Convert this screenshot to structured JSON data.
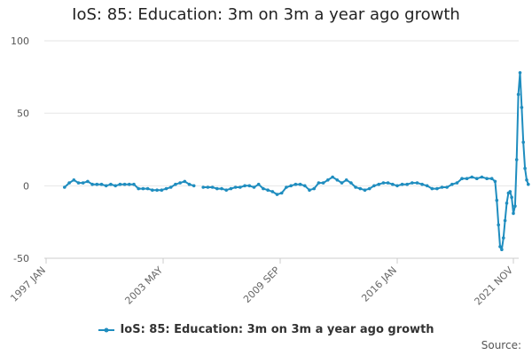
{
  "chart_data": {
    "type": "line",
    "title": "IoS: 85: Education: 3m on 3m a year ago growth",
    "xlabel": "",
    "ylabel": "",
    "ylim": [
      -50,
      100
    ],
    "yticks": [
      -50,
      0,
      50,
      100
    ],
    "xticks": [
      "1997 JAN",
      "2003 MAY",
      "2009 SEP",
      "2016 JAN",
      "2021 NOV"
    ],
    "grid": true,
    "legend_position": "bottom",
    "source_label": "Source:",
    "line_color": "#1f8dbf",
    "series": [
      {
        "name": "IoS: 85: Education: 3m on 3m a year ago growth",
        "points": [
          [
            "1998-01",
            -1
          ],
          [
            "1998-04",
            2
          ],
          [
            "1998-07",
            4
          ],
          [
            "1998-10",
            2
          ],
          [
            "1999-01",
            2
          ],
          [
            "1999-04",
            3
          ],
          [
            "1999-07",
            1
          ],
          [
            "1999-10",
            1
          ],
          [
            "2000-01",
            1
          ],
          [
            "2000-04",
            0
          ],
          [
            "2000-07",
            1
          ],
          [
            "2000-10",
            0
          ],
          [
            "2001-01",
            1
          ],
          [
            "2001-04",
            1
          ],
          [
            "2001-07",
            1
          ],
          [
            "2001-10",
            1
          ],
          [
            "2002-01",
            -2
          ],
          [
            "2002-04",
            -2
          ],
          [
            "2002-07",
            -2
          ],
          [
            "2002-10",
            -3
          ],
          [
            "2003-01",
            -3
          ],
          [
            "2003-04",
            -3
          ],
          [
            "2003-07",
            -2
          ],
          [
            "2003-10",
            -1
          ],
          [
            "2004-01",
            1
          ],
          [
            "2004-04",
            2
          ],
          [
            "2004-07",
            3
          ],
          [
            "2004-10",
            1
          ],
          [
            "2005-01",
            0
          ],
          [
            "2005-04",
            null
          ],
          [
            "2005-07",
            -1
          ],
          [
            "2005-10",
            -1
          ],
          [
            "2006-01",
            -1
          ],
          [
            "2006-04",
            -2
          ],
          [
            "2006-07",
            -2
          ],
          [
            "2006-10",
            -3
          ],
          [
            "2007-01",
            -2
          ],
          [
            "2007-04",
            -1
          ],
          [
            "2007-07",
            -1
          ],
          [
            "2007-10",
            0
          ],
          [
            "2008-01",
            0
          ],
          [
            "2008-04",
            -1
          ],
          [
            "2008-07",
            1
          ],
          [
            "2008-10",
            -2
          ],
          [
            "2009-01",
            -3
          ],
          [
            "2009-04",
            -4
          ],
          [
            "2009-07",
            -6
          ],
          [
            "2009-10",
            -5
          ],
          [
            "2010-01",
            -1
          ],
          [
            "2010-04",
            0
          ],
          [
            "2010-07",
            1
          ],
          [
            "2010-10",
            1
          ],
          [
            "2011-01",
            0
          ],
          [
            "2011-04",
            -3
          ],
          [
            "2011-07",
            -2
          ],
          [
            "2011-10",
            2
          ],
          [
            "2012-01",
            2
          ],
          [
            "2012-04",
            4
          ],
          [
            "2012-07",
            6
          ],
          [
            "2012-10",
            4
          ],
          [
            "2013-01",
            2
          ],
          [
            "2013-04",
            4
          ],
          [
            "2013-07",
            2
          ],
          [
            "2013-10",
            -1
          ],
          [
            "2014-01",
            -2
          ],
          [
            "2014-04",
            -3
          ],
          [
            "2014-07",
            -2
          ],
          [
            "2014-10",
            0
          ],
          [
            "2015-01",
            1
          ],
          [
            "2015-04",
            2
          ],
          [
            "2015-07",
            2
          ],
          [
            "2015-10",
            1
          ],
          [
            "2016-01",
            0
          ],
          [
            "2016-04",
            1
          ],
          [
            "2016-07",
            1
          ],
          [
            "2016-10",
            2
          ],
          [
            "2017-01",
            2
          ],
          [
            "2017-04",
            1
          ],
          [
            "2017-07",
            0
          ],
          [
            "2017-10",
            -2
          ],
          [
            "2018-01",
            -2
          ],
          [
            "2018-04",
            -1
          ],
          [
            "2018-07",
            -1
          ],
          [
            "2018-10",
            1
          ],
          [
            "2019-01",
            2
          ],
          [
            "2019-04",
            5
          ],
          [
            "2019-07",
            5
          ],
          [
            "2019-10",
            6
          ],
          [
            "2020-01",
            5
          ],
          [
            "2020-04",
            6
          ],
          [
            "2020-07",
            5
          ],
          [
            "2020-10",
            5
          ],
          [
            "2020-12",
            3
          ],
          [
            "2021-01",
            -10
          ],
          [
            "2021-02",
            -27
          ],
          [
            "2021-03",
            -42
          ],
          [
            "2021-04",
            -44
          ],
          [
            "2021-05",
            -36
          ],
          [
            "2021-06",
            -24
          ],
          [
            "2021-07",
            -12
          ],
          [
            "2021-08",
            -5
          ],
          [
            "2021-09",
            -4
          ],
          [
            "2021-10",
            -8
          ],
          [
            "2021-11",
            -19
          ],
          [
            "2021-12",
            -14
          ],
          [
            "2022-01",
            18
          ],
          [
            "2022-02",
            63
          ],
          [
            "2022-03",
            78
          ],
          [
            "2022-04",
            54
          ],
          [
            "2022-05",
            30
          ],
          [
            "2022-06",
            12
          ],
          [
            "2022-07",
            4
          ],
          [
            "2022-08",
            1
          ]
        ]
      }
    ]
  }
}
